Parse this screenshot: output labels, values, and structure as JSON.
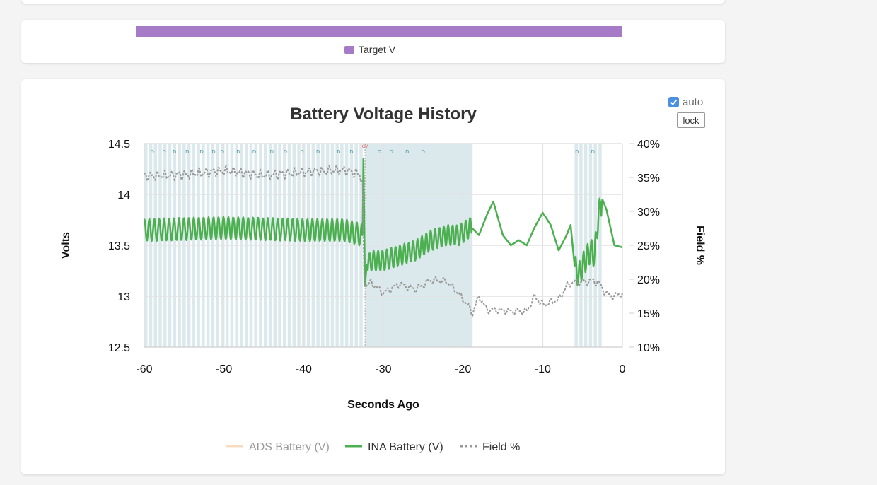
{
  "target_legend": {
    "label": "Target V",
    "color": "#a57bc7"
  },
  "controls": {
    "auto_label": "auto",
    "auto_checked": true,
    "lock_label": "lock"
  },
  "chart_data": {
    "type": "line",
    "title": "Battery Voltage History",
    "xlabel": "Seconds Ago",
    "ylabel": "Volts",
    "y2label": "Field %",
    "xlim": [
      -60,
      0
    ],
    "ylim": [
      12.5,
      14.5
    ],
    "y2lim": [
      10,
      40
    ],
    "x_ticks": [
      "-60",
      "-50",
      "-40",
      "-30",
      "-20",
      "-10",
      "0"
    ],
    "y_ticks": [
      "14.5",
      "14",
      "13.5",
      "13",
      "12.5"
    ],
    "y2_ticks": [
      "40%",
      "35%",
      "30%",
      "25%",
      "20%",
      "15%",
      "10%"
    ],
    "grid": true,
    "legend_position": "bottom",
    "series": [
      {
        "name": "ADS Battery (V)",
        "color": "#f8dcc0",
        "hidden": true,
        "values": []
      },
      {
        "name": "INA Battery (V)",
        "color": "#4caf50",
        "x": [
          -60,
          -55,
          -50,
          -45,
          -40,
          -35,
          -32.6,
          -32.5,
          -32.3,
          -32.1,
          -31.5,
          -30,
          -28,
          -26,
          -24,
          -22,
          -20.5,
          -19,
          -18,
          -17,
          -16.2,
          -15,
          -14,
          -13,
          -12,
          -11,
          -10,
          -9,
          -8,
          -7,
          -6.5,
          -6,
          -5.5,
          -5,
          -4,
          -3.5,
          -3,
          -2.5,
          -2,
          -1,
          0
        ],
        "y": [
          13.65,
          13.66,
          13.67,
          13.66,
          13.65,
          13.65,
          13.6,
          14.35,
          13.1,
          13.3,
          13.35,
          13.35,
          13.4,
          13.45,
          13.55,
          13.6,
          13.6,
          13.68,
          13.6,
          13.8,
          13.93,
          13.6,
          13.5,
          13.55,
          13.5,
          13.68,
          13.82,
          13.7,
          13.45,
          13.6,
          13.7,
          13.3,
          13.2,
          13.3,
          13.45,
          13.4,
          13.8,
          13.95,
          13.85,
          13.5,
          13.48
        ]
      },
      {
        "name": "Field %",
        "color": "#999999",
        "dashed": true,
        "axis": "right",
        "x": [
          -60,
          -55,
          -50,
          -45,
          -40,
          -35,
          -33,
          -32.6,
          -32.4,
          -31.5,
          -30,
          -28,
          -26,
          -24,
          -22,
          -20.5,
          -19.5,
          -18.8,
          -18,
          -17,
          -16,
          -14,
          -12,
          -11,
          -10,
          -9,
          -8,
          -7,
          -6.5,
          -6,
          -5,
          -4,
          -3,
          -2,
          -1,
          0
        ],
        "y": [
          35.2,
          35.4,
          36.0,
          35.3,
          35.8,
          36.1,
          35.5,
          34,
          19,
          19.5,
          18,
          19.3,
          18.5,
          19.9,
          19.7,
          17.8,
          16.3,
          15.0,
          17.5,
          15.5,
          15.5,
          15.3,
          15.3,
          17.5,
          16.2,
          16.6,
          17,
          19,
          19.4,
          19.6,
          19.5,
          19.8,
          19.5,
          17.8,
          17.5,
          18
        ]
      }
    ],
    "shaded_regions": [
      [
        -60,
        -59.6
      ],
      [
        -59.4,
        -59
      ],
      [
        -58.8,
        -58.4
      ],
      [
        -58.2,
        -57.8
      ],
      [
        -57.6,
        -57.2
      ],
      [
        -57,
        -56.6
      ],
      [
        -56.4,
        -56
      ],
      [
        -55.8,
        -55.4
      ],
      [
        -55.2,
        -54.8
      ],
      [
        -54.6,
        -54.2
      ],
      [
        -54,
        -53.6
      ],
      [
        -53.4,
        -53
      ],
      [
        -52.8,
        -52.4
      ],
      [
        -52.2,
        -51.8
      ],
      [
        -51.6,
        -51.2
      ],
      [
        -51,
        -50.6
      ],
      [
        -50.4,
        -50
      ],
      [
        -49.8,
        -49.4
      ],
      [
        -49.2,
        -48.8
      ],
      [
        -48.6,
        -48.2
      ],
      [
        -48,
        -47.6
      ],
      [
        -47.4,
        -47
      ],
      [
        -46.8,
        -46.4
      ],
      [
        -46.2,
        -45.8
      ],
      [
        -45.6,
        -45.2
      ],
      [
        -45,
        -44.6
      ],
      [
        -44.4,
        -44
      ],
      [
        -43.8,
        -43.4
      ],
      [
        -43.2,
        -42.8
      ],
      [
        -42.6,
        -42.2
      ],
      [
        -42,
        -41.6
      ],
      [
        -41.4,
        -41
      ],
      [
        -40.8,
        -40.4
      ],
      [
        -40.2,
        -39.8
      ],
      [
        -39.6,
        -39.2
      ],
      [
        -39,
        -38.6
      ],
      [
        -38.4,
        -38
      ],
      [
        -37.8,
        -37.4
      ],
      [
        -37.2,
        -36.8
      ],
      [
        -36.6,
        -36.2
      ],
      [
        -36,
        -35.6
      ],
      [
        -35.4,
        -35
      ],
      [
        -34.8,
        -34.4
      ],
      [
        -34.2,
        -33.8
      ],
      [
        -33.6,
        -33.2
      ],
      [
        -33,
        -32.6
      ],
      [
        -32.3,
        -18.8
      ],
      [
        -6,
        -5.6
      ],
      [
        -5.4,
        -5
      ],
      [
        -4.8,
        -4.4
      ],
      [
        -4.2,
        -3.8
      ],
      [
        -3.6,
        -3.2
      ],
      [
        -3,
        -2.6
      ]
    ],
    "markers": [
      {
        "x": -59,
        "label": "D"
      },
      {
        "x": -57.5,
        "label": "D"
      },
      {
        "x": -56.2,
        "label": "D"
      },
      {
        "x": -54.6,
        "label": "D"
      },
      {
        "x": -52.8,
        "label": "D"
      },
      {
        "x": -51.3,
        "label": "D"
      },
      {
        "x": -50.2,
        "label": "D"
      },
      {
        "x": -48.2,
        "label": "D"
      },
      {
        "x": -46.2,
        "label": "D"
      },
      {
        "x": -44,
        "label": "D"
      },
      {
        "x": -42.3,
        "label": "D"
      },
      {
        "x": -40.2,
        "label": "D"
      },
      {
        "x": -38.2,
        "label": "D"
      },
      {
        "x": -35.6,
        "label": "D"
      },
      {
        "x": -34,
        "label": "D"
      },
      {
        "x": -32.3,
        "label": "CV"
      },
      {
        "x": -30.5,
        "label": "D"
      },
      {
        "x": -29,
        "label": "D"
      },
      {
        "x": -27,
        "label": "D"
      },
      {
        "x": -25,
        "label": "D"
      },
      {
        "x": -5.7,
        "label": "D"
      },
      {
        "x": -3.7,
        "label": "D"
      }
    ]
  }
}
